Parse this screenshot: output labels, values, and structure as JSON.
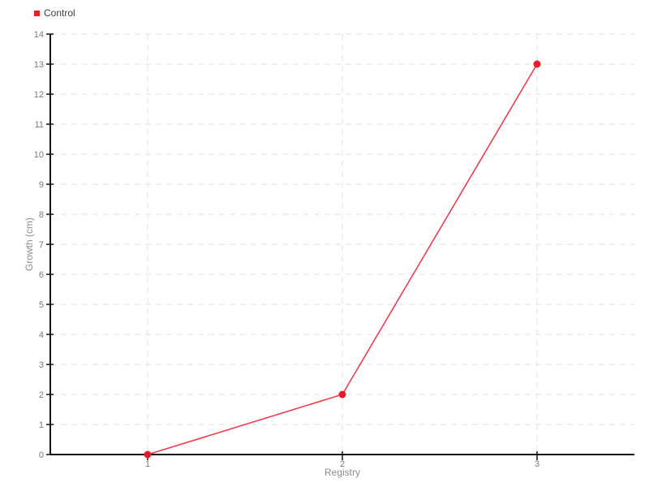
{
  "legend": {
    "items": [
      {
        "label": "Control",
        "color": "#e81c2c"
      }
    ]
  },
  "chart_data": {
    "type": "line",
    "title": "",
    "xlabel": "Registry",
    "ylabel": "Growth (cm)",
    "x": [
      1,
      2,
      3
    ],
    "series": [
      {
        "name": "Control",
        "color": "#e81c2c",
        "values": [
          0,
          2,
          13
        ]
      }
    ],
    "xlim": [
      0.5,
      3.5
    ],
    "ylim": [
      0,
      14
    ],
    "x_ticks": [
      "1",
      "2",
      "3"
    ],
    "y_ticks": [
      "0",
      "1",
      "2",
      "3",
      "4",
      "5",
      "6",
      "7",
      "8",
      "9",
      "10",
      "11",
      "12",
      "13",
      "14"
    ],
    "grid": true,
    "grid_style": "dashed",
    "legend_position": "top-left",
    "marker": "circle"
  },
  "theme": {
    "accent": "#e81c2c",
    "grid_color": "#e2e2e2",
    "axis_color": "#141414",
    "tick_label_color": "#7a7a7a",
    "axis_label_color": "#8c8c8c",
    "legend_text_color": "#3c3c3c",
    "background": "#ffffff"
  }
}
